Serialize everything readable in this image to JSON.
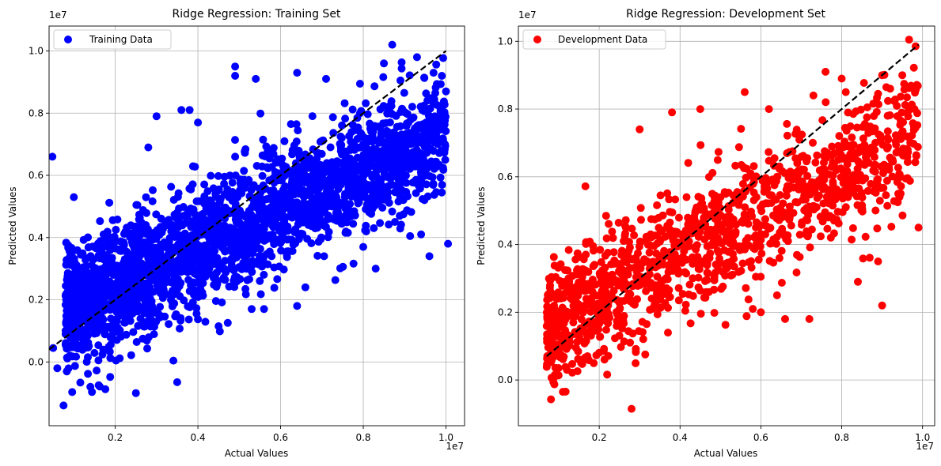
{
  "colors": {
    "training": "#0000ff",
    "development": "#ff0000",
    "reference_line": "#000000",
    "grid": "#b0b0b0"
  },
  "chart_data": [
    {
      "type": "scatter",
      "title": "Ridge Regression: Training Set",
      "xlabel": "Actual Values",
      "ylabel": "Predicted Values",
      "x_offset_label": "1e7",
      "y_offset_label": "1e7",
      "xlim": [
        0.04,
        1.045
      ],
      "ylim": [
        -0.205,
        1.08
      ],
      "xticks": [
        0.2,
        0.4,
        0.6,
        0.8,
        1.0
      ],
      "xtick_labels": [
        "0.2",
        "0.4",
        "0.6",
        "0.8",
        "1.0"
      ],
      "yticks": [
        0.0,
        0.2,
        0.4,
        0.6,
        0.8,
        1.0
      ],
      "ytick_labels": [
        "0.0",
        "0.2",
        "0.4",
        "0.6",
        "0.8",
        "1.0"
      ],
      "grid": true,
      "legend": {
        "position": "top-left",
        "entries": [
          "Training Data"
        ]
      },
      "reference_line": {
        "style": "dashed",
        "from": [
          0.04,
          0.04
        ],
        "to": [
          1.0,
          1.0
        ]
      },
      "series": [
        {
          "name": "Training Data",
          "color": "#0000ff",
          "cloud": {
            "count": 2600,
            "x_range": [
              0.08,
              1.0
            ],
            "slope": 0.62,
            "intercept": 0.115,
            "y_spread": 0.095
          },
          "points": [
            [
              0.048,
              0.66
            ],
            [
              0.075,
              -0.14
            ],
            [
              0.1,
              0.53
            ],
            [
              0.05,
              0.045
            ],
            [
              0.06,
              -0.02
            ],
            [
              0.25,
              -0.1
            ],
            [
              0.35,
              -0.065
            ],
            [
              0.14,
              -0.08
            ],
            [
              0.16,
              -0.075
            ],
            [
              0.49,
              0.95
            ],
            [
              0.87,
              1.02
            ],
            [
              0.85,
              0.96
            ],
            [
              0.49,
              0.92
            ],
            [
              0.71,
              0.91
            ],
            [
              0.93,
              0.98
            ],
            [
              0.54,
              0.91
            ],
            [
              0.64,
              0.93
            ],
            [
              0.89,
              0.905
            ],
            [
              0.96,
              0.34
            ],
            [
              1.005,
              0.38
            ],
            [
              0.45,
              0.115
            ],
            [
              0.53,
              0.17
            ],
            [
              0.56,
              0.17
            ],
            [
              0.64,
              0.18
            ],
            [
              0.66,
              0.24
            ],
            [
              0.83,
              0.3
            ],
            [
              0.8,
              0.37
            ],
            [
              0.94,
              0.41
            ],
            [
              1.0,
              0.87
            ],
            [
              0.97,
              0.83
            ],
            [
              0.97,
              0.93
            ],
            [
              0.99,
              0.92
            ],
            [
              0.36,
              0.81
            ],
            [
              0.38,
              0.81
            ],
            [
              0.3,
              0.79
            ],
            [
              0.4,
              0.77
            ],
            [
              0.28,
              0.69
            ]
          ]
        }
      ]
    },
    {
      "type": "scatter",
      "title": "Ridge Regression: Development Set",
      "xlabel": "Actual Values",
      "ylabel": "Predicted Values",
      "x_offset_label": "1e7",
      "y_offset_label": "1e7",
      "xlim": [
        0.0,
        1.03
      ],
      "ylim": [
        -0.135,
        1.045
      ],
      "xticks": [
        0.2,
        0.4,
        0.6,
        0.8,
        1.0
      ],
      "xtick_labels": [
        "0.2",
        "0.4",
        "0.6",
        "0.8",
        "1.0"
      ],
      "yticks": [
        0.0,
        0.2,
        0.4,
        0.6,
        0.8,
        1.0
      ],
      "ytick_labels": [
        "0.0",
        "0.2",
        "0.4",
        "0.6",
        "0.8",
        "1.0"
      ],
      "grid": true,
      "legend": {
        "position": "top-left",
        "entries": [
          "Development Data"
        ]
      },
      "reference_line": {
        "style": "dashed",
        "from": [
          0.07,
          0.07
        ],
        "to": [
          0.99,
          0.99
        ]
      },
      "series": [
        {
          "name": "Development Data",
          "color": "#ff0000",
          "cloud": {
            "count": 1300,
            "x_range": [
              0.07,
              0.99
            ],
            "slope": 0.62,
            "intercept": 0.115,
            "y_spread": 0.095
          },
          "points": [
            [
              0.28,
              -0.085
            ],
            [
              0.09,
              0.01
            ],
            [
              0.11,
              -0.035
            ],
            [
              0.12,
              0.03
            ],
            [
              0.09,
              0.015
            ],
            [
              0.9,
              0.22
            ],
            [
              0.99,
              0.45
            ],
            [
              0.76,
              0.91
            ],
            [
              0.8,
              0.89
            ],
            [
              0.81,
              0.85
            ],
            [
              0.9,
              0.9
            ],
            [
              0.95,
              0.9
            ],
            [
              0.56,
              0.85
            ],
            [
              0.45,
              0.8
            ],
            [
              0.38,
              0.79
            ],
            [
              0.62,
              0.8
            ],
            [
              0.73,
              0.84
            ],
            [
              0.98,
              0.8
            ],
            [
              0.92,
              0.86
            ],
            [
              0.89,
              0.845
            ],
            [
              0.72,
              0.18
            ],
            [
              0.66,
              0.18
            ],
            [
              0.6,
              0.2
            ],
            [
              0.58,
              0.21
            ],
            [
              0.64,
              0.25
            ],
            [
              0.37,
              0.14
            ],
            [
              0.84,
              0.29
            ],
            [
              0.89,
              0.35
            ],
            [
              0.94,
              0.55
            ],
            [
              0.3,
              0.74
            ]
          ]
        }
      ]
    }
  ]
}
